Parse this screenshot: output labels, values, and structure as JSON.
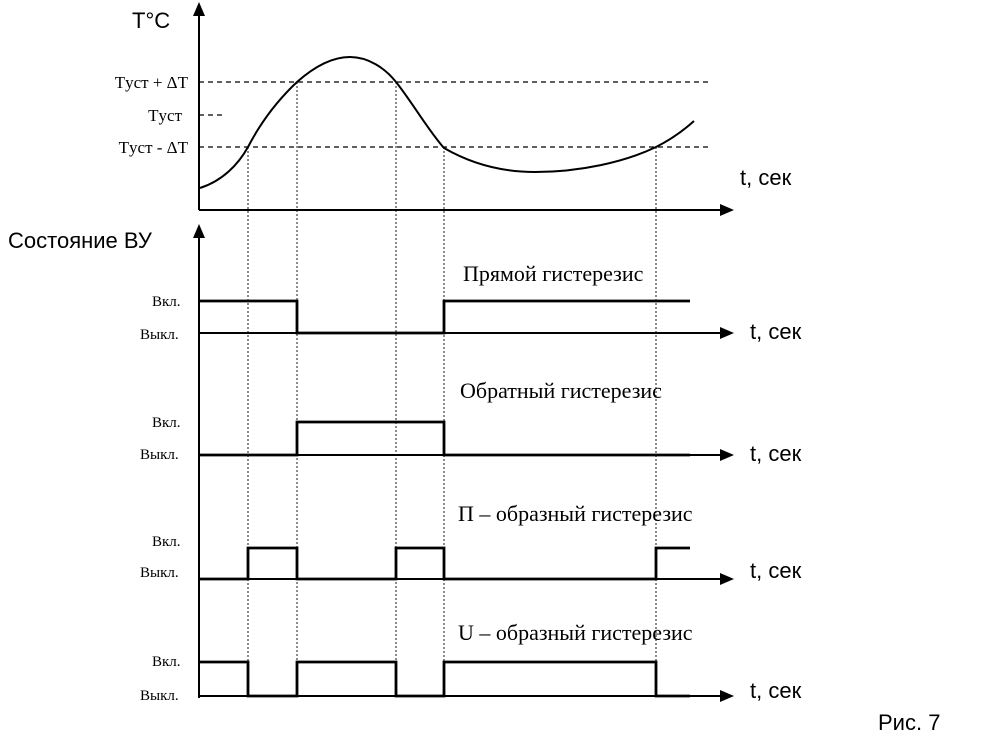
{
  "temperature_panel": {
    "y_axis_label": "T°C",
    "x_axis_label": "t, сек",
    "level_upper_label": "Tуст + ΔT",
    "level_mid_label": "Tуст",
    "level_lower_label": "Tуст - ΔT"
  },
  "state_panel": {
    "y_axis_label": "Состояние ВУ"
  },
  "rows": [
    {
      "title": "Прямой гистерезис",
      "on_label": "Вкл.",
      "off_label": "Выкл.",
      "x_axis_label": "t, сек"
    },
    {
      "title": "Обратный гистерезис",
      "on_label": "Вкл.",
      "off_label": "Выкл.",
      "x_axis_label": "t, сек"
    },
    {
      "title": "П – образный гистерезис",
      "on_label": "Вкл.",
      "off_label": "Выкл.",
      "x_axis_label": "t, сек"
    },
    {
      "title": "U – образный гистерезис",
      "on_label": "Вкл.",
      "off_label": "Выкл.",
      "x_axis_label": "t, сек"
    }
  ],
  "figure_caption": "Рис. 7"
}
